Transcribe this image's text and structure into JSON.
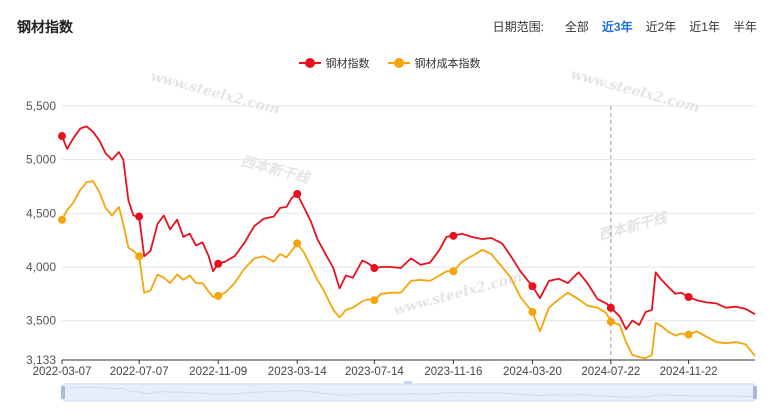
{
  "title": "钢材指数",
  "range": {
    "label": "日期范围:",
    "options": [
      "全部",
      "近3年",
      "近2年",
      "近1年",
      "半年"
    ],
    "active_index": 1
  },
  "legend": [
    {
      "name": "钢材指数",
      "color": "#e8101c"
    },
    {
      "name": "钢材成本指数",
      "color": "#f5a50a"
    }
  ],
  "watermark": {
    "url": "www.steelx2.com",
    "brand": "西本新干线"
  },
  "chart_data": {
    "type": "line",
    "y_ticks": [
      3133,
      3500,
      4000,
      4500,
      5000,
      5500
    ],
    "y_tick_labels": [
      "3,133",
      "3,500",
      "4,000",
      "4,500",
      "5,000",
      "5,500"
    ],
    "ylim": [
      3133,
      5500
    ],
    "x_tick_labels": [
      "2022-03-07",
      "2022-07-07",
      "2022-11-09",
      "2023-03-14",
      "2023-07-14",
      "2023-11-16",
      "2024-03-20",
      "2024-07-22",
      "2024-11-22"
    ],
    "x_ticks": [
      "2022-03-07",
      "2022-07-07",
      "2022-11-09",
      "2023-03-14",
      "2023-07-14",
      "2023-11-16",
      "2024-03-20",
      "2024-07-22",
      "2024-11-22"
    ],
    "x_range": [
      "2022-03-07",
      "2025-03-07"
    ],
    "cursor_date": "2024-07-22",
    "grid": "horizontal",
    "legend_position": "top-center",
    "series": [
      {
        "name": "钢材指数",
        "color": "#e8101c",
        "points": [
          [
            "2022-03-07",
            5220
          ],
          [
            "2022-03-15",
            5100
          ],
          [
            "2022-03-25",
            5200
          ],
          [
            "2022-04-05",
            5290
          ],
          [
            "2022-04-15",
            5310
          ],
          [
            "2022-04-25",
            5260
          ],
          [
            "2022-05-05",
            5180
          ],
          [
            "2022-05-15",
            5060
          ],
          [
            "2022-05-25",
            5000
          ],
          [
            "2022-06-05",
            5070
          ],
          [
            "2022-06-12",
            5000
          ],
          [
            "2022-06-20",
            4620
          ],
          [
            "2022-06-28",
            4480
          ],
          [
            "2022-07-07",
            4470
          ],
          [
            "2022-07-15",
            4100
          ],
          [
            "2022-07-25",
            4150
          ],
          [
            "2022-08-05",
            4400
          ],
          [
            "2022-08-15",
            4480
          ],
          [
            "2022-08-25",
            4350
          ],
          [
            "2022-09-05",
            4440
          ],
          [
            "2022-09-15",
            4280
          ],
          [
            "2022-09-25",
            4310
          ],
          [
            "2022-10-05",
            4200
          ],
          [
            "2022-10-15",
            4230
          ],
          [
            "2022-10-25",
            4100
          ],
          [
            "2022-11-01",
            3960
          ],
          [
            "2022-11-09",
            4030
          ],
          [
            "2022-11-20",
            4050
          ],
          [
            "2022-12-05",
            4100
          ],
          [
            "2022-12-20",
            4220
          ],
          [
            "2023-01-05",
            4380
          ],
          [
            "2023-01-20",
            4450
          ],
          [
            "2023-02-05",
            4470
          ],
          [
            "2023-02-15",
            4550
          ],
          [
            "2023-02-25",
            4560
          ],
          [
            "2023-03-05",
            4640
          ],
          [
            "2023-03-14",
            4680
          ],
          [
            "2023-03-25",
            4550
          ],
          [
            "2023-04-05",
            4420
          ],
          [
            "2023-04-15",
            4260
          ],
          [
            "2023-04-25",
            4150
          ],
          [
            "2023-05-10",
            3990
          ],
          [
            "2023-05-20",
            3800
          ],
          [
            "2023-05-30",
            3920
          ],
          [
            "2023-06-10",
            3900
          ],
          [
            "2023-06-25",
            4060
          ],
          [
            "2023-07-05",
            4030
          ],
          [
            "2023-07-14",
            3990
          ],
          [
            "2023-07-25",
            4000
          ],
          [
            "2023-08-10",
            4000
          ],
          [
            "2023-08-25",
            3990
          ],
          [
            "2023-09-10",
            4080
          ],
          [
            "2023-09-25",
            4020
          ],
          [
            "2023-10-10",
            4040
          ],
          [
            "2023-10-25",
            4160
          ],
          [
            "2023-11-05",
            4280
          ],
          [
            "2023-11-16",
            4290
          ],
          [
            "2023-11-30",
            4310
          ],
          [
            "2023-12-15",
            4280
          ],
          [
            "2024-01-01",
            4260
          ],
          [
            "2024-01-15",
            4270
          ],
          [
            "2024-02-01",
            4220
          ],
          [
            "2024-02-15",
            4100
          ],
          [
            "2024-03-01",
            3960
          ],
          [
            "2024-03-20",
            3820
          ],
          [
            "2024-04-01",
            3710
          ],
          [
            "2024-04-15",
            3870
          ],
          [
            "2024-05-01",
            3890
          ],
          [
            "2024-05-15",
            3850
          ],
          [
            "2024-06-01",
            3950
          ],
          [
            "2024-06-15",
            3850
          ],
          [
            "2024-07-01",
            3700
          ],
          [
            "2024-07-15",
            3660
          ],
          [
            "2024-07-22",
            3620
          ],
          [
            "2024-08-05",
            3540
          ],
          [
            "2024-08-15",
            3420
          ],
          [
            "2024-08-25",
            3500
          ],
          [
            "2024-09-05",
            3460
          ],
          [
            "2024-09-15",
            3580
          ],
          [
            "2024-09-25",
            3600
          ],
          [
            "2024-10-01",
            3950
          ],
          [
            "2024-10-10",
            3880
          ],
          [
            "2024-10-20",
            3820
          ],
          [
            "2024-11-01",
            3750
          ],
          [
            "2024-11-10",
            3760
          ],
          [
            "2024-11-22",
            3720
          ],
          [
            "2024-12-05",
            3690
          ],
          [
            "2024-12-20",
            3670
          ],
          [
            "2025-01-05",
            3660
          ],
          [
            "2025-01-20",
            3620
          ],
          [
            "2025-02-05",
            3630
          ],
          [
            "2025-02-20",
            3610
          ],
          [
            "2025-03-07",
            3560
          ]
        ],
        "markers": [
          "2022-03-07",
          "2022-07-07",
          "2022-11-09",
          "2023-03-14",
          "2023-07-14",
          "2023-11-16",
          "2024-03-20",
          "2024-07-22",
          "2024-11-22"
        ]
      },
      {
        "name": "钢材成本指数",
        "color": "#f5a50a",
        "points": [
          [
            "2022-03-07",
            4440
          ],
          [
            "2022-03-15",
            4530
          ],
          [
            "2022-03-25",
            4600
          ],
          [
            "2022-04-05",
            4720
          ],
          [
            "2022-04-15",
            4790
          ],
          [
            "2022-04-25",
            4800
          ],
          [
            "2022-05-05",
            4700
          ],
          [
            "2022-05-15",
            4550
          ],
          [
            "2022-05-25",
            4480
          ],
          [
            "2022-06-05",
            4560
          ],
          [
            "2022-06-12",
            4400
          ],
          [
            "2022-06-20",
            4180
          ],
          [
            "2022-06-28",
            4150
          ],
          [
            "2022-07-07",
            4100
          ],
          [
            "2022-07-15",
            3760
          ],
          [
            "2022-07-25",
            3780
          ],
          [
            "2022-08-05",
            3930
          ],
          [
            "2022-08-15",
            3900
          ],
          [
            "2022-08-25",
            3850
          ],
          [
            "2022-09-05",
            3930
          ],
          [
            "2022-09-15",
            3880
          ],
          [
            "2022-09-25",
            3920
          ],
          [
            "2022-10-05",
            3850
          ],
          [
            "2022-10-15",
            3850
          ],
          [
            "2022-10-25",
            3770
          ],
          [
            "2022-11-01",
            3720
          ],
          [
            "2022-11-09",
            3730
          ],
          [
            "2022-11-20",
            3760
          ],
          [
            "2022-12-05",
            3850
          ],
          [
            "2022-12-20",
            3980
          ],
          [
            "2023-01-05",
            4080
          ],
          [
            "2023-01-20",
            4100
          ],
          [
            "2023-02-05",
            4050
          ],
          [
            "2023-02-15",
            4120
          ],
          [
            "2023-02-25",
            4090
          ],
          [
            "2023-03-05",
            4150
          ],
          [
            "2023-03-14",
            4220
          ],
          [
            "2023-03-25",
            4130
          ],
          [
            "2023-04-05",
            4000
          ],
          [
            "2023-04-15",
            3880
          ],
          [
            "2023-04-25",
            3780
          ],
          [
            "2023-05-10",
            3600
          ],
          [
            "2023-05-20",
            3530
          ],
          [
            "2023-05-30",
            3600
          ],
          [
            "2023-06-10",
            3620
          ],
          [
            "2023-06-25",
            3680
          ],
          [
            "2023-07-05",
            3700
          ],
          [
            "2023-07-14",
            3690
          ],
          [
            "2023-07-25",
            3750
          ],
          [
            "2023-08-10",
            3760
          ],
          [
            "2023-08-25",
            3760
          ],
          [
            "2023-09-10",
            3870
          ],
          [
            "2023-09-25",
            3880
          ],
          [
            "2023-10-10",
            3870
          ],
          [
            "2023-10-25",
            3920
          ],
          [
            "2023-11-05",
            3960
          ],
          [
            "2023-11-16",
            3960
          ],
          [
            "2023-11-30",
            4050
          ],
          [
            "2023-12-15",
            4100
          ],
          [
            "2024-01-01",
            4160
          ],
          [
            "2024-01-15",
            4120
          ],
          [
            "2024-02-01",
            4000
          ],
          [
            "2024-02-15",
            3900
          ],
          [
            "2024-03-01",
            3720
          ],
          [
            "2024-03-20",
            3580
          ],
          [
            "2024-04-01",
            3400
          ],
          [
            "2024-04-15",
            3620
          ],
          [
            "2024-05-01",
            3700
          ],
          [
            "2024-05-15",
            3760
          ],
          [
            "2024-06-01",
            3700
          ],
          [
            "2024-06-15",
            3640
          ],
          [
            "2024-07-01",
            3620
          ],
          [
            "2024-07-15",
            3570
          ],
          [
            "2024-07-22",
            3490
          ],
          [
            "2024-08-05",
            3460
          ],
          [
            "2024-08-15",
            3300
          ],
          [
            "2024-08-25",
            3180
          ],
          [
            "2024-09-05",
            3160
          ],
          [
            "2024-09-15",
            3150
          ],
          [
            "2024-09-25",
            3180
          ],
          [
            "2024-10-01",
            3480
          ],
          [
            "2024-10-10",
            3450
          ],
          [
            "2024-10-20",
            3400
          ],
          [
            "2024-11-01",
            3360
          ],
          [
            "2024-11-10",
            3380
          ],
          [
            "2024-11-22",
            3370
          ],
          [
            "2024-12-05",
            3400
          ],
          [
            "2024-12-20",
            3350
          ],
          [
            "2025-01-05",
            3300
          ],
          [
            "2025-01-20",
            3290
          ],
          [
            "2025-02-05",
            3300
          ],
          [
            "2025-02-20",
            3280
          ],
          [
            "2025-03-07",
            3170
          ]
        ],
        "markers": [
          "2022-03-07",
          "2022-07-07",
          "2022-11-09",
          "2023-03-14",
          "2023-07-14",
          "2023-11-16",
          "2024-03-20",
          "2024-07-22",
          "2024-11-22"
        ]
      }
    ]
  }
}
